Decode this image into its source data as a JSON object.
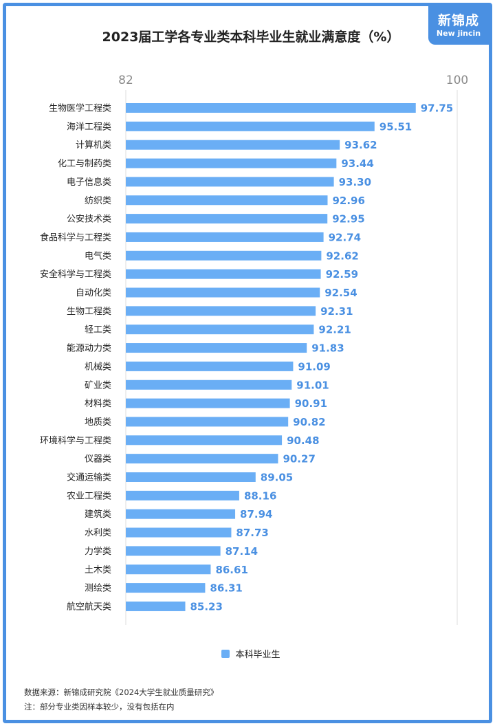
{
  "logo": {
    "main": "新锦成",
    "sub": "New jincin"
  },
  "chart_data": {
    "type": "bar",
    "orientation": "horizontal",
    "title": "2023届工学各专业类本科毕业生就业满意度（%）",
    "categories": [
      "生物医学工程类",
      "海洋工程类",
      "计算机类",
      "化工与制药类",
      "电子信息类",
      "纺织类",
      "公安技术类",
      "食品科学与工程类",
      "电气类",
      "安全科学与工程类",
      "自动化类",
      "生物工程类",
      "轻工类",
      "能源动力类",
      "机械类",
      "矿业类",
      "材料类",
      "地质类",
      "环境科学与工程类",
      "仪器类",
      "交通运输类",
      "农业工程类",
      "建筑类",
      "水利类",
      "力学类",
      "土木类",
      "测绘类",
      "航空航天类"
    ],
    "series": [
      {
        "name": "本科毕业生",
        "values": [
          97.75,
          95.51,
          93.62,
          93.44,
          93.3,
          92.96,
          92.95,
          92.74,
          92.62,
          92.59,
          92.54,
          92.31,
          92.21,
          91.83,
          91.09,
          91.01,
          90.91,
          90.82,
          90.48,
          90.27,
          89.05,
          88.16,
          87.94,
          87.73,
          87.14,
          86.61,
          86.31,
          85.23
        ],
        "value_labels": [
          "97.75",
          "95.51",
          "93.62",
          "93.44",
          "93.30",
          "92.96",
          "92.95",
          "92.74",
          "92.62",
          "92.59",
          "92.54",
          "92.31",
          "92.21",
          "91.83",
          "91.09",
          "91.01",
          "90.91",
          "90.82",
          "90.48",
          "90.27",
          "89.05",
          "88.16",
          "87.94",
          "87.73",
          "87.14",
          "86.61",
          "86.31",
          "85.23"
        ]
      }
    ],
    "xlim": [
      82,
      100
    ],
    "ticks": [
      "82",
      "100"
    ],
    "legend_position": "bottom-center",
    "bar_color": "#6aaef5",
    "label_color": "#4a90e2"
  },
  "footnotes": {
    "source": "数据来源：新锦成研究院《2024大学生就业质量研究》",
    "note": "注：部分专业类因样本较少，没有包括在内"
  }
}
